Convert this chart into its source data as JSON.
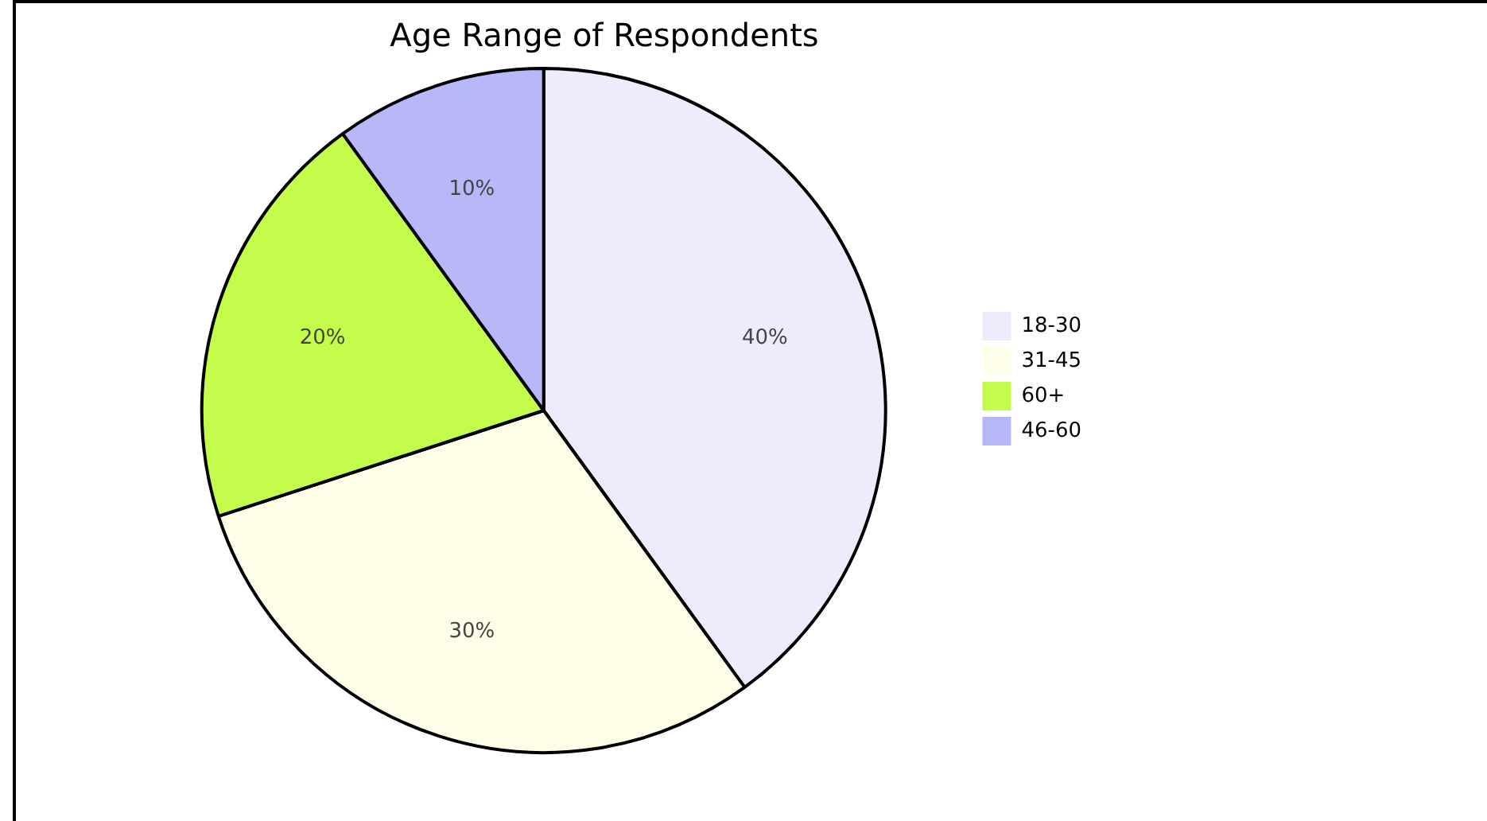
{
  "chart_data": {
    "type": "pie",
    "title": "Age Range of Respondents",
    "categories": [
      "18-30",
      "31-45",
      "60+",
      "46-60"
    ],
    "values": [
      40,
      30,
      20,
      10
    ],
    "value_labels": [
      "40%",
      "30%",
      "20%",
      "10%"
    ],
    "colors": [
      "#ececfc",
      "#fefee8",
      "#c4fc4c",
      "#b8b8f8"
    ],
    "legend": "right"
  }
}
